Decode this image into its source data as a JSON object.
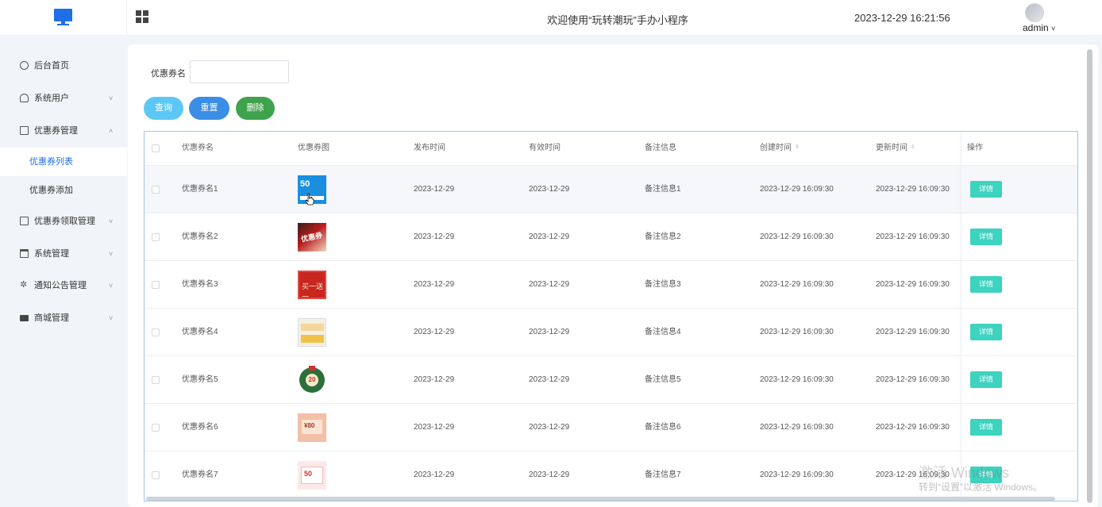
{
  "header": {
    "welcome": "欢迎使用“玩转潮玩”手办小程序",
    "datetime": "2023-12-29 16:21:56",
    "username": "admin",
    "username_caret": "˅"
  },
  "sidebar": {
    "items": [
      {
        "label": "后台首页",
        "icon": "clock-icon",
        "arrow": ""
      },
      {
        "label": "系统用户",
        "icon": "user-icon",
        "arrow": "˅"
      },
      {
        "label": "优惠券管理",
        "icon": "card-icon",
        "arrow": "˄"
      },
      {
        "label": "优惠券领取管理",
        "icon": "card-icon",
        "arrow": "˅"
      },
      {
        "label": "系统管理",
        "icon": "folder-icon",
        "arrow": "˅"
      },
      {
        "label": "通知公告管理",
        "icon": "sparkle-icon",
        "arrow": "˅"
      },
      {
        "label": "商城管理",
        "icon": "shop-icon",
        "arrow": "˅"
      }
    ],
    "subitems": [
      {
        "label": "优惠券列表",
        "active": true
      },
      {
        "label": "优惠券添加",
        "active": false
      }
    ]
  },
  "search": {
    "label": "优惠券名",
    "value": "",
    "placeholder": ""
  },
  "buttons": {
    "query": "查询",
    "reset": "重置",
    "delete": "删除"
  },
  "table": {
    "columns": [
      "优惠券名",
      "优惠券图",
      "发布时间",
      "有效时间",
      "备注信息",
      "创建时间",
      "更新时间",
      "操作"
    ],
    "sort_glyph": "⇳",
    "detail_label": "详情",
    "rows": [
      {
        "name": "优惠券名1",
        "image": "coupon-50-blue",
        "thumb_text": "50",
        "publish": "2023-12-29",
        "valid": "2023-12-29",
        "note": "备注信息1",
        "created": "2023-12-29 16:09:30",
        "updated": "2023-12-29 16:09:30"
      },
      {
        "name": "优惠券名2",
        "image": "coupon-red-ticket",
        "thumb_text": "优惠券",
        "publish": "2023-12-29",
        "valid": "2023-12-29",
        "note": "备注信息2",
        "created": "2023-12-29 16:09:30",
        "updated": "2023-12-29 16:09:30"
      },
      {
        "name": "优惠券名3",
        "image": "coupon-buy-one-get-one",
        "thumb_text": "买一送一",
        "publish": "2023-12-29",
        "valid": "2023-12-29",
        "note": "备注信息3",
        "created": "2023-12-29 16:09:30",
        "updated": "2023-12-29 16:09:30"
      },
      {
        "name": "优惠券名4",
        "image": "coupon-yellow-gift",
        "thumb_text": "",
        "publish": "2023-12-29",
        "valid": "2023-12-29",
        "note": "备注信息4",
        "created": "2023-12-29 16:09:30",
        "updated": "2023-12-29 16:09:30"
      },
      {
        "name": "优惠券名5",
        "image": "coupon-wreath-20",
        "thumb_text": "20",
        "publish": "2023-12-29",
        "valid": "2023-12-29",
        "note": "备注信息5",
        "created": "2023-12-29 16:09:30",
        "updated": "2023-12-29 16:09:30"
      },
      {
        "name": "优惠券名6",
        "image": "coupon-pink-80",
        "thumb_text": "¥80",
        "publish": "2023-12-29",
        "valid": "2023-12-29",
        "note": "备注信息6",
        "created": "2023-12-29 16:09:30",
        "updated": "2023-12-29 16:09:30"
      },
      {
        "name": "优惠券名7",
        "image": "coupon-red-50",
        "thumb_text": "50",
        "publish": "2023-12-29",
        "valid": "2023-12-29",
        "note": "备注信息7",
        "created": "2023-12-29 16:09:30",
        "updated": "2023-12-29 16:09:30"
      }
    ]
  },
  "watermark": {
    "line1": "激活 Windows",
    "line2": "转到“设置”以激活 Windows。"
  },
  "colors": {
    "accent": "#1e6fe8",
    "query": "#5cc7f5",
    "reset": "#3a8ee6",
    "delete": "#3fa34d",
    "detail": "#3cd3c0"
  }
}
